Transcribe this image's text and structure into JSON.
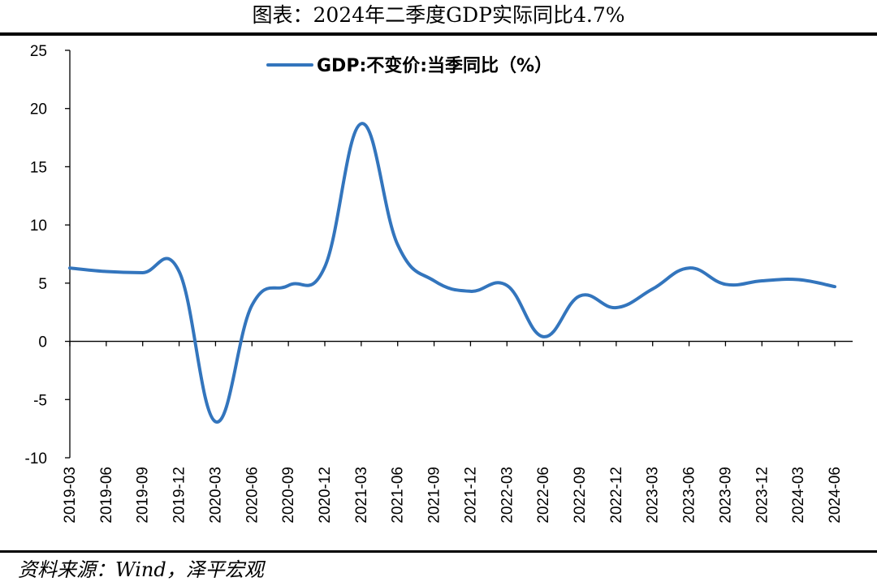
{
  "header": {
    "title": "图表：2024年二季度GDP实际同比4.7%"
  },
  "footer": {
    "source": "资料来源：Wind，泽平宏观"
  },
  "chart_data": {
    "type": "line",
    "title": "图表：2024年二季度GDP实际同比4.7%",
    "xlabel": "",
    "ylabel": "",
    "ylim": [
      -10,
      25
    ],
    "yticks": [
      25,
      20,
      15,
      10,
      5,
      0,
      -5,
      -10
    ],
    "grid": false,
    "legend_position": "top-center",
    "categories": [
      "2019-03",
      "2019-06",
      "2019-09",
      "2019-12",
      "2020-03",
      "2020-06",
      "2020-09",
      "2020-12",
      "2021-03",
      "2021-06",
      "2021-09",
      "2021-12",
      "2022-03",
      "2022-06",
      "2022-09",
      "2022-12",
      "2023-03",
      "2023-06",
      "2023-09",
      "2023-12",
      "2024-03",
      "2024-06"
    ],
    "series": [
      {
        "name": "GDP:不变价:当季同比（%）",
        "color": "#3375BD",
        "values": [
          6.3,
          6.0,
          5.9,
          6.0,
          -6.9,
          3.1,
          4.8,
          6.4,
          18.7,
          8.3,
          5.2,
          4.3,
          4.8,
          0.4,
          3.9,
          2.9,
          4.5,
          6.3,
          4.9,
          5.2,
          5.3,
          4.7
        ]
      }
    ]
  }
}
